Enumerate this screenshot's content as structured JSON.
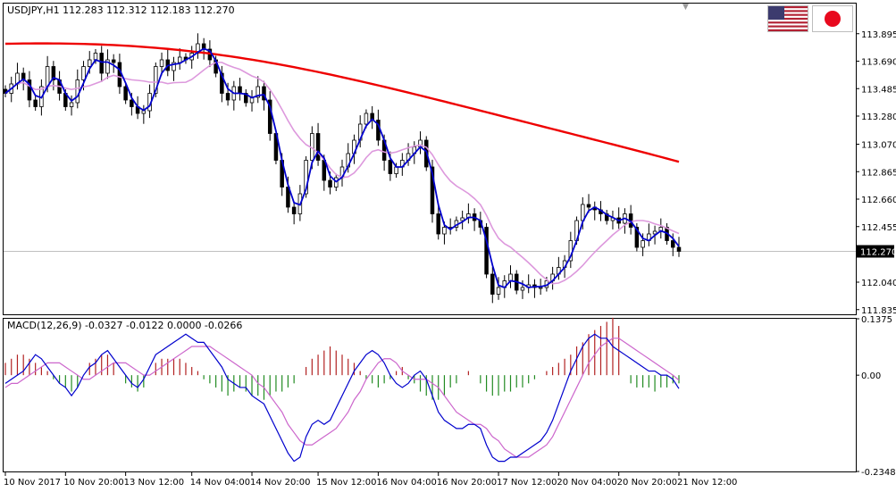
{
  "chart_data": [
    {
      "type": "candlestick",
      "title": "USDJPY,H1  112.283 112.312 112.183 112.270",
      "current_price": 112.27,
      "current_price_label": "112.270",
      "ylim": [
        111.8,
        114.12
      ],
      "yticks": [
        113.895,
        113.69,
        113.485,
        113.28,
        113.07,
        112.865,
        112.66,
        112.455,
        112.04,
        111.835
      ],
      "ytick_labels": [
        "113.895",
        "113.690",
        "113.485",
        "113.280",
        "113.070",
        "112.865",
        "112.660",
        "112.455",
        "112.040",
        "111.835"
      ],
      "bars_total": 113,
      "close": [
        113.45,
        113.52,
        113.6,
        113.55,
        113.4,
        113.35,
        113.5,
        113.65,
        113.55,
        113.45,
        113.35,
        113.38,
        113.55,
        113.65,
        113.7,
        113.75,
        113.6,
        113.7,
        113.68,
        113.5,
        113.4,
        113.35,
        113.3,
        113.32,
        113.45,
        113.65,
        113.7,
        113.62,
        113.68,
        113.72,
        113.7,
        113.75,
        113.82,
        113.78,
        113.7,
        113.6,
        113.45,
        113.4,
        113.5,
        113.45,
        113.38,
        113.42,
        113.5,
        113.4,
        113.15,
        112.95,
        112.75,
        112.6,
        112.55,
        112.7,
        112.95,
        113.15,
        112.95,
        112.8,
        112.75,
        112.82,
        112.9,
        113.0,
        113.1,
        113.22,
        113.3,
        113.25,
        113.1,
        112.95,
        112.85,
        112.9,
        112.95,
        113.0,
        113.05,
        113.1,
        112.9,
        112.55,
        112.4,
        112.45,
        112.45,
        112.5,
        112.52,
        112.55,
        112.5,
        112.45,
        112.1,
        111.95,
        112.0,
        112.05,
        112.1,
        111.98,
        112.0,
        112.02,
        112.0,
        112.0,
        112.05,
        112.1,
        112.15,
        112.2,
        112.35,
        112.5,
        112.62,
        112.6,
        112.58,
        112.55,
        112.5,
        112.52,
        112.48,
        112.55,
        112.45,
        112.3,
        112.35,
        112.4,
        112.42,
        112.45,
        112.35,
        112.3,
        112.27
      ],
      "indicators": [
        {
          "name": "MA (fast)",
          "color": "#0000cd"
        },
        {
          "name": "MA (medium)",
          "color": "#dd99dd"
        },
        {
          "name": "MA (slow)",
          "color": "#ee0000"
        }
      ],
      "xtick_labels": [
        "10 Nov 2017",
        "10 Nov 20:00",
        "13 Nov 12:00",
        "14 Nov 04:00",
        "14 Nov 20:00",
        "15 Nov 12:00",
        "16 Nov 04:00",
        "16 Nov 20:00",
        "17 Nov 12:00",
        "20 Nov 04:00",
        "20 Nov 20:00",
        "21 Nov 12:00"
      ],
      "xtick_bar_index": [
        0,
        10,
        20,
        31,
        41,
        52,
        62,
        72,
        82,
        92,
        102,
        112
      ],
      "colors": {
        "bull_body": "#ffffff",
        "bear_body": "#000000",
        "price_line": "#c0c0c0",
        "price_label_bg": "#000000",
        "price_label_fg": "#ffffff"
      },
      "grid": false
    },
    {
      "type": "bar+line",
      "title": "MACD(12,26,9) -0.0327 -0.0122 0.0000 -0.0266",
      "ylim": [
        -0.2348,
        0.1375
      ],
      "yticks": [
        0.1375,
        0.0,
        -0.2348
      ],
      "ytick_labels": [
        "0.1375",
        "0.00",
        "-0.2348"
      ],
      "series": [
        {
          "values": [
            -0.02,
            -0.01,
            0.0,
            0.01,
            0.03,
            0.05,
            0.04,
            0.02,
            0.0,
            -0.02,
            -0.03,
            -0.05,
            -0.03,
            0.0,
            0.02,
            0.03,
            0.05,
            0.06,
            0.04,
            0.02,
            0.0,
            -0.02,
            -0.03,
            -0.01,
            0.02,
            0.05,
            0.06,
            0.07,
            0.08,
            0.09,
            0.1,
            0.09,
            0.08,
            0.08,
            0.06,
            0.04,
            0.02,
            -0.01,
            -0.02,
            -0.03,
            -0.03,
            -0.05,
            -0.06,
            -0.07,
            -0.1,
            -0.13,
            -0.16,
            -0.19,
            -0.21,
            -0.2,
            -0.15,
            -0.12,
            -0.11,
            -0.12,
            -0.11,
            -0.08,
            -0.05,
            -0.02,
            0.01,
            0.03,
            0.05,
            0.06,
            0.05,
            0.03,
            0.0,
            -0.02,
            -0.03,
            -0.02,
            0.0,
            0.01,
            -0.01,
            -0.05,
            -0.09,
            -0.11,
            -0.12,
            -0.13,
            -0.13,
            -0.12,
            -0.12,
            -0.13,
            -0.17,
            -0.2,
            -0.21,
            -0.21,
            -0.2,
            -0.2,
            -0.19,
            -0.18,
            -0.17,
            -0.16,
            -0.14,
            -0.11,
            -0.07,
            -0.03,
            0.01,
            0.04,
            0.07,
            0.09,
            0.1,
            0.09,
            0.09,
            0.07,
            0.06,
            0.05,
            0.04,
            0.03,
            0.02,
            0.01,
            0.01,
            0.0,
            0.0,
            -0.01,
            -0.0327
          ]
        },
        {
          "values": [
            -0.03,
            -0.02,
            -0.02,
            -0.01,
            0.0,
            0.01,
            0.02,
            0.03,
            0.03,
            0.03,
            0.02,
            0.01,
            0.0,
            -0.01,
            -0.01,
            0.0,
            0.01,
            0.02,
            0.03,
            0.03,
            0.03,
            0.02,
            0.01,
            0.0,
            0.0,
            0.01,
            0.02,
            0.03,
            0.04,
            0.05,
            0.06,
            0.07,
            0.07,
            0.07,
            0.07,
            0.06,
            0.05,
            0.04,
            0.03,
            0.02,
            0.01,
            0.0,
            -0.02,
            -0.03,
            -0.05,
            -0.07,
            -0.09,
            -0.12,
            -0.14,
            -0.16,
            -0.17,
            -0.17,
            -0.16,
            -0.15,
            -0.14,
            -0.13,
            -0.11,
            -0.09,
            -0.06,
            -0.04,
            -0.01,
            0.01,
            0.03,
            0.04,
            0.04,
            0.03,
            0.01,
            0.0,
            -0.01,
            -0.01,
            -0.01,
            -0.02,
            -0.03,
            -0.05,
            -0.07,
            -0.09,
            -0.1,
            -0.11,
            -0.12,
            -0.12,
            -0.13,
            -0.15,
            -0.16,
            -0.18,
            -0.19,
            -0.2,
            -0.2,
            -0.2,
            -0.19,
            -0.18,
            -0.17,
            -0.15,
            -0.12,
            -0.09,
            -0.06,
            -0.03,
            0.0,
            0.03,
            0.05,
            0.07,
            0.08,
            0.09,
            0.09,
            0.08,
            0.07,
            0.06,
            0.05,
            0.04,
            0.03,
            0.02,
            0.01,
            0.0,
            -0.0122
          ],
          "color": "#cc66cc"
        }
      ],
      "histogram": [
        0.03,
        0.04,
        0.05,
        0.05,
        0.04,
        0.03,
        0.02,
        0.01,
        -0.01,
        -0.02,
        -0.03,
        -0.04,
        -0.03,
        0.0,
        0.03,
        0.04,
        0.05,
        0.05,
        0.03,
        0.0,
        -0.02,
        -0.03,
        -0.04,
        -0.03,
        0.0,
        0.03,
        0.04,
        0.04,
        0.04,
        0.04,
        0.03,
        0.02,
        0.01,
        -0.01,
        -0.02,
        -0.03,
        -0.04,
        -0.05,
        -0.04,
        -0.03,
        -0.04,
        -0.05,
        -0.05,
        -0.06,
        -0.05,
        -0.04,
        -0.04,
        -0.03,
        -0.02,
        0.0,
        0.02,
        0.04,
        0.05,
        0.06,
        0.07,
        0.06,
        0.05,
        0.04,
        0.03,
        0.01,
        -0.01,
        -0.02,
        -0.03,
        -0.02,
        -0.01,
        0.01,
        0.02,
        -0.01,
        -0.02,
        -0.04,
        -0.05,
        -0.06,
        -0.06,
        -0.05,
        -0.03,
        -0.02,
        0.0,
        0.01,
        0.0,
        -0.02,
        -0.04,
        -0.05,
        -0.05,
        -0.04,
        -0.04,
        -0.03,
        -0.03,
        -0.02,
        -0.01,
        0.0,
        0.01,
        0.02,
        0.03,
        0.04,
        0.05,
        0.07,
        0.08,
        0.1,
        0.11,
        0.12,
        0.13,
        0.14,
        0.12,
        0.0,
        -0.02,
        -0.03,
        -0.03,
        -0.03,
        -0.04,
        -0.03,
        -0.03,
        -0.02,
        -0.02
      ],
      "colors": {
        "hist_up": "#b22222",
        "hist_down": "#228b22",
        "macd_line": "#0000cd"
      },
      "grid": false
    }
  ]
}
